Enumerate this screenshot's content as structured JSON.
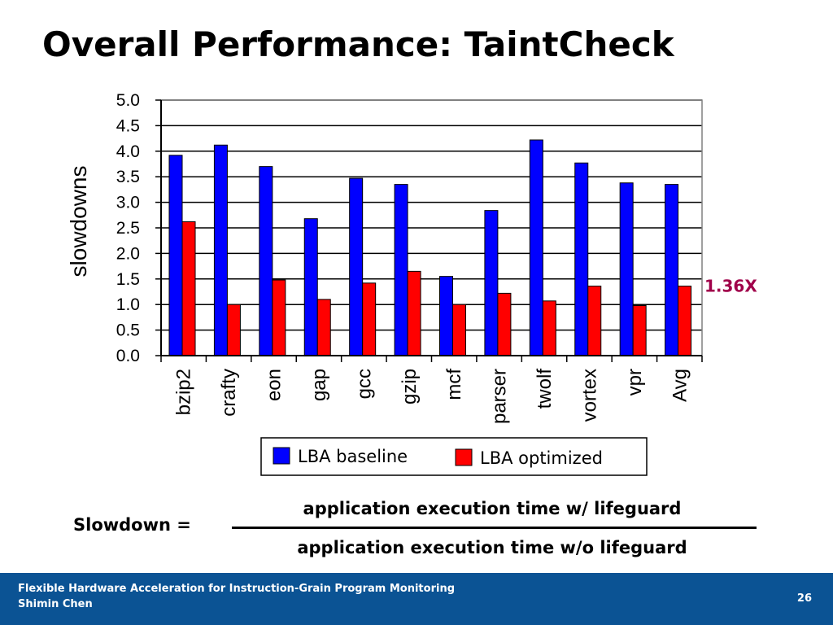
{
  "slide": {
    "title": "Overall Performance: TaintCheck"
  },
  "chart_data": {
    "type": "bar",
    "ylabel": "slowdowns",
    "xlabel": "",
    "ylim": [
      0,
      5.0
    ],
    "yticks": [
      "0.0",
      "0.5",
      "1.0",
      "1.5",
      "2.0",
      "2.5",
      "3.0",
      "3.5",
      "4.0",
      "4.5",
      "5.0"
    ],
    "grid": true,
    "categories": [
      "bzip2",
      "crafty",
      "eon",
      "gap",
      "gcc",
      "gzip",
      "mcf",
      "parser",
      "twolf",
      "vortex",
      "vpr",
      "Avg"
    ],
    "series": [
      {
        "name": "LBA baseline",
        "color": "#0000FF",
        "values": [
          3.92,
          4.12,
          3.7,
          2.68,
          3.47,
          3.35,
          1.55,
          2.84,
          4.22,
          3.77,
          3.38,
          3.35
        ]
      },
      {
        "name": "LBA optimized",
        "color": "#FF0000",
        "values": [
          2.62,
          1.0,
          1.48,
          1.1,
          1.42,
          1.65,
          1.0,
          1.22,
          1.07,
          1.36,
          0.98,
          1.36
        ]
      }
    ],
    "legend_position": "bottom",
    "annotation": {
      "text": "1.36X",
      "color": "#A0004A"
    }
  },
  "formula": {
    "lhs": "Slowdown =",
    "numerator": "application execution time w/ lifeguard",
    "denominator": "application execution time w/o lifeguard"
  },
  "footer": {
    "line1": "Flexible Hardware Acceleration for Instruction-Grain Program Monitoring",
    "line2": "Shimin Chen",
    "page": "26"
  }
}
